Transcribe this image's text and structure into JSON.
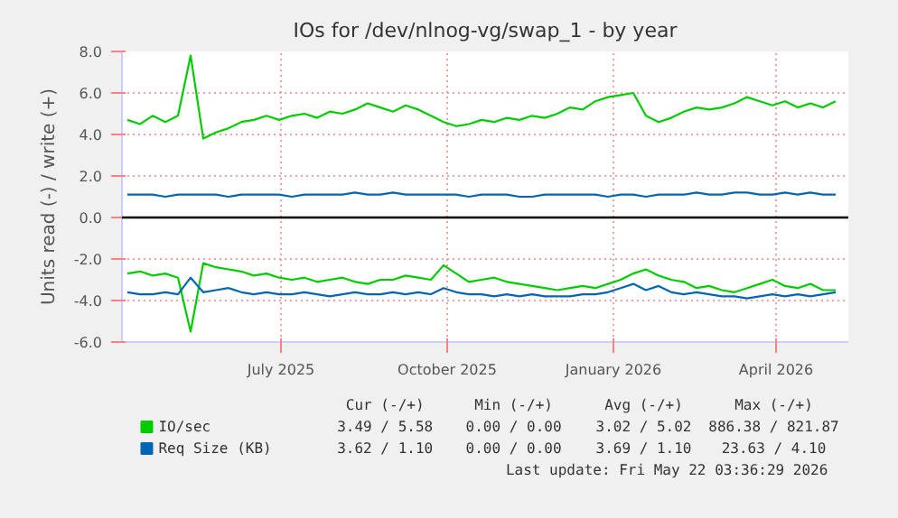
{
  "chart_data": {
    "type": "line",
    "title": "IOs for /dev/nlnog-vg/swap_1 - by year",
    "ylabel": "Units read (-) / write (+)",
    "x": [
      "2025-04-07",
      "2025-04-14",
      "2025-04-21",
      "2025-04-28",
      "2025-05-05",
      "2025-05-12",
      "2025-05-19",
      "2025-05-26",
      "2025-06-02",
      "2025-06-09",
      "2025-06-16",
      "2025-06-23",
      "2025-06-30",
      "2025-07-07",
      "2025-07-14",
      "2025-07-21",
      "2025-07-28",
      "2025-08-04",
      "2025-08-11",
      "2025-08-18",
      "2025-08-25",
      "2025-09-01",
      "2025-09-08",
      "2025-09-15",
      "2025-09-22",
      "2025-09-29",
      "2025-10-06",
      "2025-10-13",
      "2025-10-20",
      "2025-10-27",
      "2025-11-03",
      "2025-11-10",
      "2025-11-17",
      "2025-11-24",
      "2025-12-01",
      "2025-12-08",
      "2025-12-15",
      "2025-12-22",
      "2025-12-29",
      "2026-01-05",
      "2026-01-12",
      "2026-01-19",
      "2026-01-26",
      "2026-02-02",
      "2026-02-09",
      "2026-02-16",
      "2026-02-23",
      "2026-03-02",
      "2026-03-09",
      "2026-03-16",
      "2026-03-23",
      "2026-03-30",
      "2026-04-06",
      "2026-04-13",
      "2026-04-20",
      "2026-04-27",
      "2026-05-04"
    ],
    "series": [
      {
        "name": "IO/sec",
        "color": "#00cc00",
        "values": [
          4.7,
          4.5,
          4.9,
          4.6,
          4.9,
          7.8,
          3.8,
          4.1,
          4.3,
          4.6,
          4.7,
          4.9,
          4.7,
          4.9,
          5.0,
          4.8,
          5.1,
          5.0,
          5.2,
          5.5,
          5.3,
          5.1,
          5.4,
          5.2,
          4.9,
          4.6,
          4.4,
          4.5,
          4.7,
          4.6,
          4.8,
          4.7,
          4.9,
          4.8,
          5.0,
          5.3,
          5.2,
          5.6,
          5.8,
          5.9,
          6.0,
          4.9,
          4.6,
          4.8,
          5.1,
          5.3,
          5.2,
          5.3,
          5.5,
          5.8,
          5.6,
          5.4,
          5.6,
          5.3,
          5.5,
          5.3,
          5.6
        ]
      },
      {
        "name": "Req Size (KB)",
        "color": "#0066b3",
        "values": [
          1.1,
          1.1,
          1.1,
          1.0,
          1.1,
          1.1,
          1.1,
          1.1,
          1.0,
          1.1,
          1.1,
          1.1,
          1.1,
          1.0,
          1.1,
          1.1,
          1.1,
          1.1,
          1.2,
          1.1,
          1.1,
          1.2,
          1.1,
          1.1,
          1.1,
          1.1,
          1.1,
          1.0,
          1.1,
          1.1,
          1.1,
          1.0,
          1.0,
          1.1,
          1.1,
          1.1,
          1.1,
          1.1,
          1.0,
          1.1,
          1.1,
          1.0,
          1.1,
          1.1,
          1.1,
          1.2,
          1.1,
          1.1,
          1.2,
          1.2,
          1.1,
          1.1,
          1.2,
          1.1,
          1.2,
          1.1,
          1.1
        ]
      },
      {
        "color": "#00cc00",
        "values": [
          -2.7,
          -2.6,
          -2.8,
          -2.7,
          -2.9,
          -5.5,
          -2.2,
          -2.4,
          -2.5,
          -2.6,
          -2.8,
          -2.7,
          -2.9,
          -3.0,
          -2.9,
          -3.1,
          -3.0,
          -2.9,
          -3.1,
          -3.2,
          -3.0,
          -3.0,
          -2.8,
          -2.9,
          -3.0,
          -2.3,
          -2.7,
          -3.1,
          -3.0,
          -2.9,
          -3.1,
          -3.2,
          -3.3,
          -3.4,
          -3.5,
          -3.4,
          -3.3,
          -3.4,
          -3.2,
          -3.0,
          -2.7,
          -2.5,
          -2.8,
          -3.0,
          -3.1,
          -3.4,
          -3.3,
          -3.5,
          -3.6,
          -3.4,
          -3.2,
          -3.0,
          -3.3,
          -3.4,
          -3.2,
          -3.5,
          -3.5
        ]
      },
      {
        "color": "#0066b3",
        "values": [
          -3.6,
          -3.7,
          -3.7,
          -3.6,
          -3.7,
          -2.9,
          -3.6,
          -3.5,
          -3.4,
          -3.6,
          -3.7,
          -3.6,
          -3.7,
          -3.7,
          -3.6,
          -3.7,
          -3.8,
          -3.7,
          -3.6,
          -3.7,
          -3.7,
          -3.6,
          -3.7,
          -3.6,
          -3.7,
          -3.4,
          -3.6,
          -3.7,
          -3.7,
          -3.8,
          -3.7,
          -3.8,
          -3.7,
          -3.8,
          -3.8,
          -3.8,
          -3.7,
          -3.7,
          -3.6,
          -3.4,
          -3.2,
          -3.5,
          -3.3,
          -3.6,
          -3.7,
          -3.6,
          -3.7,
          -3.8,
          -3.8,
          -3.9,
          -3.8,
          -3.7,
          -3.8,
          -3.7,
          -3.8,
          -3.7,
          -3.6
        ]
      }
    ],
    "xlim": [
      "2025-04-04",
      "2026-05-11"
    ],
    "xticks": [
      {
        "value": "2025-07-01",
        "label": "July 2025"
      },
      {
        "value": "2025-10-01",
        "label": "October 2025"
      },
      {
        "value": "2026-01-01",
        "label": "January 2026"
      },
      {
        "value": "2026-04-01",
        "label": "April 2026"
      }
    ],
    "ylim": [
      -6,
      8
    ],
    "yticks": [
      {
        "value": -6,
        "label": "-6.0"
      },
      {
        "value": -4,
        "label": "-4.0"
      },
      {
        "value": -2,
        "label": "-2.0"
      },
      {
        "value": 0,
        "label": "0.0"
      },
      {
        "value": 2,
        "label": "2.0"
      },
      {
        "value": 4,
        "label": "4.0"
      },
      {
        "value": 6,
        "label": "6.0"
      },
      {
        "value": 8,
        "label": "8.0"
      }
    ],
    "ref_lines": [
      {
        "axis": "y",
        "value": 0,
        "color": "#000000"
      }
    ],
    "grid": true,
    "legend": "bottom",
    "annotations": [
      "Cur (-/+)",
      "Min (-/+)",
      "Avg (-/+)",
      "Max (-/+)",
      "3.49 / 5.58",
      "0.00 / 0.00",
      "3.02 / 5.02",
      "886.38 / 821.87",
      "3.62 / 1.10",
      "0.00 / 0.00",
      "3.69 / 1.10",
      "23.63 / 4.10",
      "Last update: Fri May 22 03:36:29 2026"
    ]
  }
}
